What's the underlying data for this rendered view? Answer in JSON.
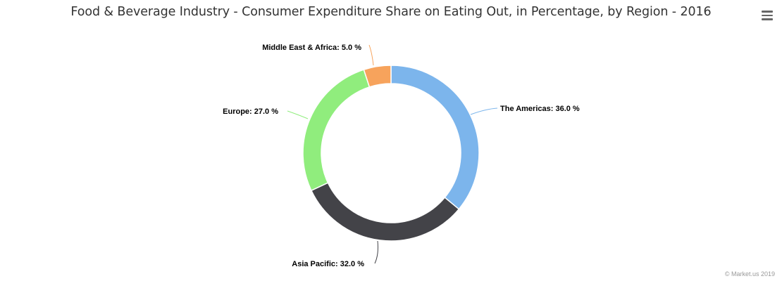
{
  "header": {
    "title": "Food & Beverage Industry - Consumer Expenditure Share on Eating Out, in Percentage, by Region - 2016",
    "menu_icon": "hamburger-menu-icon"
  },
  "footer": {
    "credit": "© Market.us 2019"
  },
  "chart_data": {
    "type": "pie",
    "variant": "donut",
    "title": "Food & Beverage Industry - Consumer Expenditure Share on Eating Out, in Percentage, by Region - 2016",
    "categories": [
      "The Americas",
      "Asia Pacific",
      "Europe",
      "Middle East & Africa"
    ],
    "values": [
      36.0,
      32.0,
      27.0,
      5.0
    ],
    "colors": [
      "#7cb5ec",
      "#434348",
      "#90ed7d",
      "#f7a35c"
    ],
    "unit": "%",
    "labels": [
      "The Americas: 36.0 %",
      "Asia Pacific: 32.0 %",
      "Europe: 27.0 %",
      "Middle East & Africa: 5.0 %"
    ],
    "legend": "none",
    "data_labels": "outside with connectors"
  }
}
